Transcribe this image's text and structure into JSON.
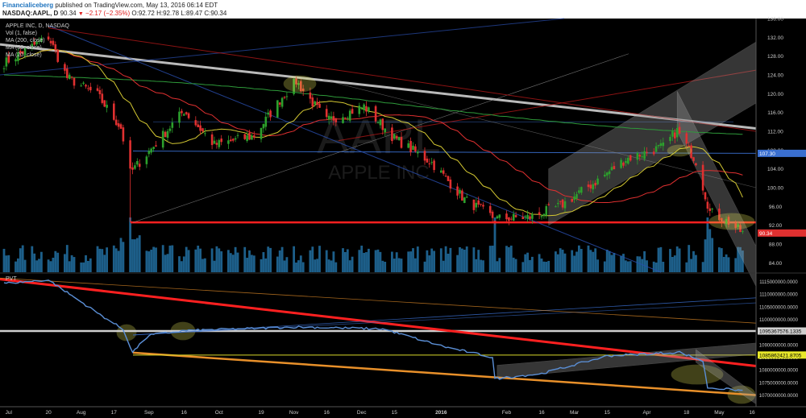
{
  "header": {
    "publisher": "Financialiceberg",
    "published_text": "published on TradingView.com, May 13, 2016 06:14 EDT",
    "symbol": "NASDAQ:AAPL, D",
    "last": "90.34",
    "change": "−2.17 (−2.35%)",
    "o": "O:92.72",
    "h": "H:92.78",
    "l": "L:89.47",
    "c": "C:90.34"
  },
  "legend": {
    "title": "APPLE INC, D, NASDAQ",
    "vol": "Vol (1, false)",
    "ma200": "MA (200, close)",
    "ma50": "MA (50, close)",
    "ma20": "MA (20, close)"
  },
  "watermark": {
    "line1": "AAPL",
    "line2": "APPLE INC"
  },
  "pvt": {
    "label": "PVT"
  },
  "colors": {
    "bg": "#000000",
    "up": "#2ca02c",
    "down": "#e03030",
    "ma20": "#d4c832",
    "ma50": "#e03030",
    "ma200": "#2e9a3a",
    "volume": "#1d5f8a",
    "pvt": "#5b8fd6",
    "support": "#ff2020",
    "trend": "#bbbbbb",
    "orange": "#e8902a",
    "channel": "#9a9a9a"
  },
  "chart_data": [
    {
      "type": "candlestick",
      "title": "APPLE INC, D, NASDAQ",
      "ylim": [
        82,
        136
      ],
      "y_ticks": [
        "136.00",
        "132.00",
        "128.00",
        "124.00",
        "120.00",
        "116.00",
        "112.00",
        "108.00",
        "104.00",
        "100.00",
        "96.00",
        "92.00",
        "88.00",
        "84.00"
      ],
      "x_ticks": [
        "Jul",
        "20",
        "Aug",
        "17",
        "Sep",
        "16",
        "Oct",
        "19",
        "Nov",
        "16",
        "Dec",
        "15",
        "2016",
        "Feb",
        "16",
        "Mar",
        "15",
        "Apr",
        "18",
        "May",
        "16"
      ],
      "price_labels": [
        "107.30",
        "90.34"
      ],
      "ohlc_anchors": [
        {
          "d": "2015-07-01",
          "c": 126.5
        },
        {
          "d": "2015-07-20",
          "c": 132.1
        },
        {
          "d": "2015-07-28",
          "c": 123.4
        },
        {
          "d": "2015-08-10",
          "c": 119.7
        },
        {
          "d": "2015-08-20",
          "c": 112.7
        },
        {
          "d": "2015-08-24",
          "c": 103.1
        },
        {
          "d": "2015-09-01",
          "c": 107.7
        },
        {
          "d": "2015-09-16",
          "c": 116.4
        },
        {
          "d": "2015-09-29",
          "c": 109.1
        },
        {
          "d": "2015-10-16",
          "c": 111.0
        },
        {
          "d": "2015-10-28",
          "c": 119.3
        },
        {
          "d": "2015-11-03",
          "c": 122.6
        },
        {
          "d": "2015-11-16",
          "c": 114.2
        },
        {
          "d": "2015-12-02",
          "c": 117.3
        },
        {
          "d": "2015-12-15",
          "c": 110.5
        },
        {
          "d": "2015-12-31",
          "c": 105.3
        },
        {
          "d": "2016-01-14",
          "c": 97.5
        },
        {
          "d": "2016-01-27",
          "c": 93.4
        },
        {
          "d": "2016-02-11",
          "c": 93.7
        },
        {
          "d": "2016-02-24",
          "c": 96.1
        },
        {
          "d": "2016-03-10",
          "c": 101.2
        },
        {
          "d": "2016-03-23",
          "c": 106.1
        },
        {
          "d": "2016-04-08",
          "c": 108.7
        },
        {
          "d": "2016-04-14",
          "c": 112.1
        },
        {
          "d": "2016-04-22",
          "c": 105.7
        },
        {
          "d": "2016-04-28",
          "c": 94.8
        },
        {
          "d": "2016-05-06",
          "c": 92.7
        },
        {
          "d": "2016-05-12",
          "c": 90.34
        }
      ]
    },
    {
      "type": "line",
      "title": "PVT",
      "ylim": [
        1067000000,
        1118000000
      ],
      "y_ticks": [
        "1115000000.0000",
        "1110000000.0000",
        "1105000000.0000",
        "1100000000.0000",
        "1090000000.0000",
        "1085000000.0000",
        "1080000000.0000",
        "1075000000.0000",
        "1070000000.0000"
      ],
      "value_labels": [
        "1095367576.1335",
        "1085862421.8705"
      ],
      "series": [
        {
          "values_anchor": [
            {
              "d": "2015-07-01",
              "v": 1114200000
            },
            {
              "d": "2015-07-20",
              "v": 1115600000
            },
            {
              "d": "2015-08-10",
              "v": 1102500000
            },
            {
              "d": "2015-08-21",
              "v": 1096000000
            },
            {
              "d": "2015-08-25",
              "v": 1087000000
            },
            {
              "d": "2015-09-01",
              "v": 1093700000
            },
            {
              "d": "2015-09-16",
              "v": 1095500000
            },
            {
              "d": "2015-10-19",
              "v": 1096500000
            },
            {
              "d": "2015-11-03",
              "v": 1097000000
            },
            {
              "d": "2015-12-10",
              "v": 1096200000
            },
            {
              "d": "2016-01-06",
              "v": 1089000000
            },
            {
              "d": "2016-01-26",
              "v": 1085000000
            },
            {
              "d": "2016-01-27",
              "v": 1076500000
            },
            {
              "d": "2016-02-16",
              "v": 1078500000
            },
            {
              "d": "2016-03-15",
              "v": 1085500000
            },
            {
              "d": "2016-04-15",
              "v": 1087000000
            },
            {
              "d": "2016-04-25",
              "v": 1083500000
            },
            {
              "d": "2016-04-27",
              "v": 1073000000
            },
            {
              "d": "2016-05-12",
              "v": 1071800000
            }
          ]
        }
      ]
    }
  ]
}
